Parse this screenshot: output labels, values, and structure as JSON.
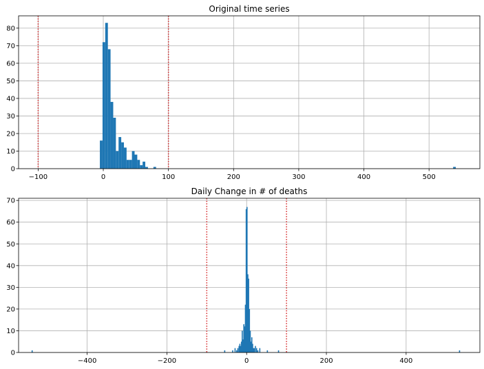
{
  "colors": {
    "bars": "#1f77b4",
    "threshold": "#d62728",
    "grid": "#b0b0b0",
    "axes": "#000000"
  },
  "chart_data": [
    {
      "type": "bar",
      "title": "Original time series",
      "xlabel": "",
      "ylabel": "",
      "xlim": [
        -130,
        578
      ],
      "ylim": [
        0,
        87
      ],
      "grid": true,
      "xticks": [
        -100,
        0,
        100,
        200,
        300,
        400,
        500
      ],
      "xtick_labels": [
        "−100",
        "0",
        "100",
        "200",
        "300",
        "400",
        "500"
      ],
      "yticks": [
        0,
        10,
        20,
        30,
        40,
        50,
        60,
        70,
        80
      ],
      "ytick_labels": [
        "0",
        "10",
        "20",
        "30",
        "40",
        "50",
        "60",
        "70",
        "80"
      ],
      "vlines": [
        -100,
        100
      ],
      "bin_width": 4.1,
      "bins": [
        {
          "x": -3.2,
          "count": 16
        },
        {
          "x": 0.9,
          "count": 72
        },
        {
          "x": 5.0,
          "count": 83
        },
        {
          "x": 9.1,
          "count": 68
        },
        {
          "x": 13.2,
          "count": 38
        },
        {
          "x": 17.3,
          "count": 29
        },
        {
          "x": 21.4,
          "count": 10
        },
        {
          "x": 25.5,
          "count": 18
        },
        {
          "x": 29.6,
          "count": 15
        },
        {
          "x": 33.7,
          "count": 12
        },
        {
          "x": 37.8,
          "count": 5
        },
        {
          "x": 41.9,
          "count": 5
        },
        {
          "x": 46.0,
          "count": 10
        },
        {
          "x": 50.1,
          "count": 8
        },
        {
          "x": 54.2,
          "count": 5
        },
        {
          "x": 58.3,
          "count": 2
        },
        {
          "x": 62.4,
          "count": 4
        },
        {
          "x": 66.5,
          "count": 1
        },
        {
          "x": 79.0,
          "count": 1
        },
        {
          "x": 539.0,
          "count": 1
        }
      ]
    },
    {
      "type": "bar",
      "title": "Daily Change in # of deaths",
      "xlabel": "",
      "ylabel": "",
      "xlim": [
        -572,
        585
      ],
      "ylim": [
        0,
        71
      ],
      "grid": true,
      "xticks": [
        -400,
        -200,
        0,
        200,
        400
      ],
      "xtick_labels": [
        "−400",
        "−200",
        "0",
        "200",
        "400"
      ],
      "yticks": [
        0,
        10,
        20,
        30,
        40,
        50,
        60,
        70
      ],
      "yticks_labels_note": "",
      "ytick_labels": [
        "0",
        "10",
        "20",
        "30",
        "40",
        "50",
        "60",
        "70"
      ],
      "vlines": [
        -100,
        100
      ],
      "bin_width": 2.2,
      "bins": [
        {
          "x": -538.0,
          "count": 1
        },
        {
          "x": -55.0,
          "count": 1
        },
        {
          "x": -35.0,
          "count": 1
        },
        {
          "x": -29.0,
          "count": 2
        },
        {
          "x": -25.0,
          "count": 1
        },
        {
          "x": -22.0,
          "count": 2
        },
        {
          "x": -19.0,
          "count": 3
        },
        {
          "x": -17.0,
          "count": 4
        },
        {
          "x": -15.0,
          "count": 3
        },
        {
          "x": -13.0,
          "count": 5
        },
        {
          "x": -11.0,
          "count": 10
        },
        {
          "x": -9.0,
          "count": 6
        },
        {
          "x": -7.0,
          "count": 13
        },
        {
          "x": -5.0,
          "count": 12
        },
        {
          "x": -3.0,
          "count": 22
        },
        {
          "x": -1.0,
          "count": 66
        },
        {
          "x": 1.0,
          "count": 67
        },
        {
          "x": 3.0,
          "count": 36
        },
        {
          "x": 5.0,
          "count": 34
        },
        {
          "x": 7.0,
          "count": 20
        },
        {
          "x": 9.0,
          "count": 10
        },
        {
          "x": 11.0,
          "count": 5
        },
        {
          "x": 13.0,
          "count": 7
        },
        {
          "x": 15.0,
          "count": 4
        },
        {
          "x": 17.0,
          "count": 2
        },
        {
          "x": 19.0,
          "count": 2
        },
        {
          "x": 22.0,
          "count": 3
        },
        {
          "x": 25.0,
          "count": 2
        },
        {
          "x": 28.0,
          "count": 1
        },
        {
          "x": 33.0,
          "count": 2
        },
        {
          "x": 52.0,
          "count": 1
        },
        {
          "x": 80.0,
          "count": 1
        },
        {
          "x": 534.0,
          "count": 1
        }
      ]
    }
  ]
}
